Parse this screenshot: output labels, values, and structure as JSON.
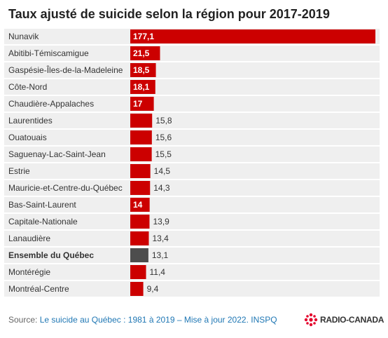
{
  "chart_data": {
    "type": "bar",
    "orientation": "horizontal",
    "title": "Taux ajusté de suicide selon la région pour 2017-2019",
    "categories": [
      "Nunavik",
      "Abitibi-Témiscamigue",
      "Gaspésie-Îles-de-la-Madeleine",
      "Côte-Nord",
      "Chaudière-Appalaches",
      "Laurentides",
      "Ouatouais",
      "Saguenay-Lac-Saint-Jean",
      "Estrie",
      "Mauricie-et-Centre-du-Québec",
      "Bas-Saint-Laurent",
      "Capitale-Nationale",
      "Lanaudière",
      "Ensemble du Québec",
      "Montérégie",
      "Montréal-Centre"
    ],
    "values": [
      177.1,
      21.5,
      18.5,
      18.1,
      17,
      15.8,
      15.6,
      15.5,
      14.5,
      14.3,
      14,
      13.9,
      13.4,
      13.1,
      11.4,
      9.4
    ],
    "value_labels": [
      "177,1",
      "21,5",
      "18,5",
      "18,1",
      "17",
      "15,8",
      "15,6",
      "15,5",
      "14,5",
      "14,3",
      "14",
      "13,9",
      "13,4",
      "13,1",
      "11,4",
      "9,4"
    ],
    "label_inside": [
      true,
      true,
      true,
      true,
      true,
      false,
      false,
      false,
      false,
      false,
      true,
      false,
      false,
      false,
      false,
      false
    ],
    "bold_categories": [
      "Ensemble du Québec"
    ],
    "bar_color": "#cc0000",
    "highlight_color": "#4d4d4d",
    "row_background": "#efefef",
    "xlim": [
      0,
      177.1
    ],
    "grid": false,
    "legend": "none"
  },
  "footer": {
    "source_prefix": "Source: ",
    "source_link": "Le suicide au Québec : 1981 à 2019 – Mise à jour 2022. INSPQ",
    "brand": "RADIO-CANADA"
  },
  "colors": {
    "brand_red": "#e4002b",
    "link": "#1f77b4"
  }
}
